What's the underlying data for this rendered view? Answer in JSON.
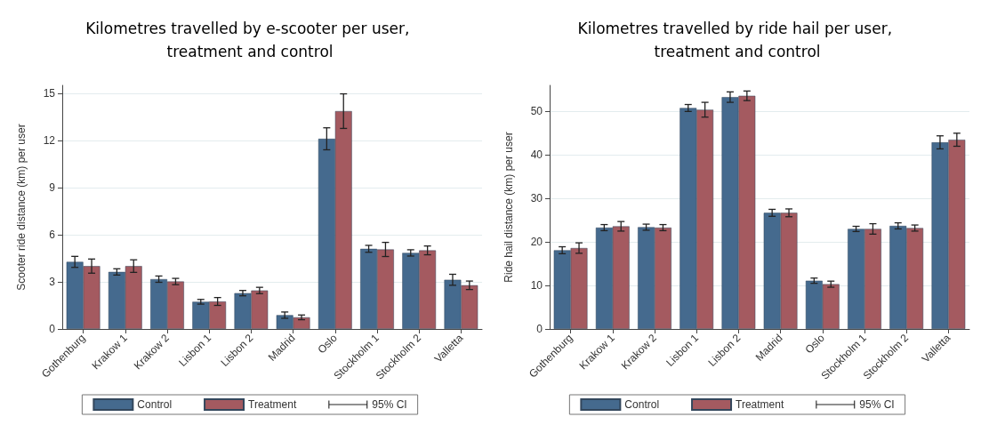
{
  "chart_data": [
    {
      "type": "bar",
      "title": "Kilometres travelled by e-scooter per user, treatment and control",
      "ylabel": "Scooter ride distance (km) per user",
      "categories": [
        "Gothenburg",
        "Krakow 1",
        "Krakow 2",
        "Lisbon 1",
        "Lisbon 2",
        "Madrid",
        "Oslo",
        "Stockholm 1",
        "Stockholm 2",
        "Valletta"
      ],
      "series": [
        {
          "name": "Control",
          "color": "#456a8e",
          "values": [
            4.27,
            3.63,
            3.17,
            1.73,
            2.28,
            0.88,
            12.1,
            5.1,
            4.84,
            3.13
          ],
          "errors": [
            0.35,
            0.2,
            0.2,
            0.15,
            0.17,
            0.2,
            0.7,
            0.22,
            0.2,
            0.35
          ]
        },
        {
          "name": "Treatment",
          "color": "#a45a60",
          "values": [
            4.0,
            4.0,
            3.02,
            1.75,
            2.45,
            0.74,
            13.86,
            5.06,
            5.0,
            2.78
          ],
          "errors": [
            0.45,
            0.4,
            0.2,
            0.25,
            0.2,
            0.15,
            1.1,
            0.45,
            0.28,
            0.27
          ]
        }
      ],
      "annotations": [
        "95% CI"
      ],
      "ylim": [
        0,
        15.5
      ],
      "yticks": [
        0,
        3,
        6,
        9,
        12,
        15
      ],
      "grid": "y",
      "legend": "bottom"
    },
    {
      "type": "bar",
      "title": "Kilometres travelled by ride hail per user, treatment and control",
      "ylabel": "Ride hail distance (km) per user",
      "categories": [
        "Gothenburg",
        "Krakow 1",
        "Krakow 2",
        "Lisbon 1",
        "Lisbon 2",
        "Madrid",
        "Oslo",
        "Stockholm 1",
        "Stockholm 2",
        "Valletta"
      ],
      "series": [
        {
          "name": "Control",
          "color": "#456a8e",
          "values": [
            18.1,
            23.3,
            23.4,
            50.8,
            53.3,
            26.7,
            11.1,
            23.0,
            23.7,
            42.9
          ],
          "errors": [
            0.8,
            0.7,
            0.7,
            0.8,
            1.2,
            0.8,
            0.6,
            0.6,
            0.7,
            1.5
          ]
        },
        {
          "name": "Treatment",
          "color": "#a45a60",
          "values": [
            18.6,
            23.6,
            23.3,
            50.4,
            53.6,
            26.7,
            10.3,
            23.0,
            23.2,
            43.5
          ],
          "errors": [
            1.2,
            1.1,
            0.7,
            1.7,
            1.1,
            0.9,
            0.7,
            1.2,
            0.7,
            1.5
          ]
        }
      ],
      "annotations": [
        "95% CI"
      ],
      "ylim": [
        0,
        56
      ],
      "yticks": [
        0,
        10,
        20,
        30,
        40,
        50
      ],
      "grid": "y",
      "legend": "bottom"
    }
  ]
}
